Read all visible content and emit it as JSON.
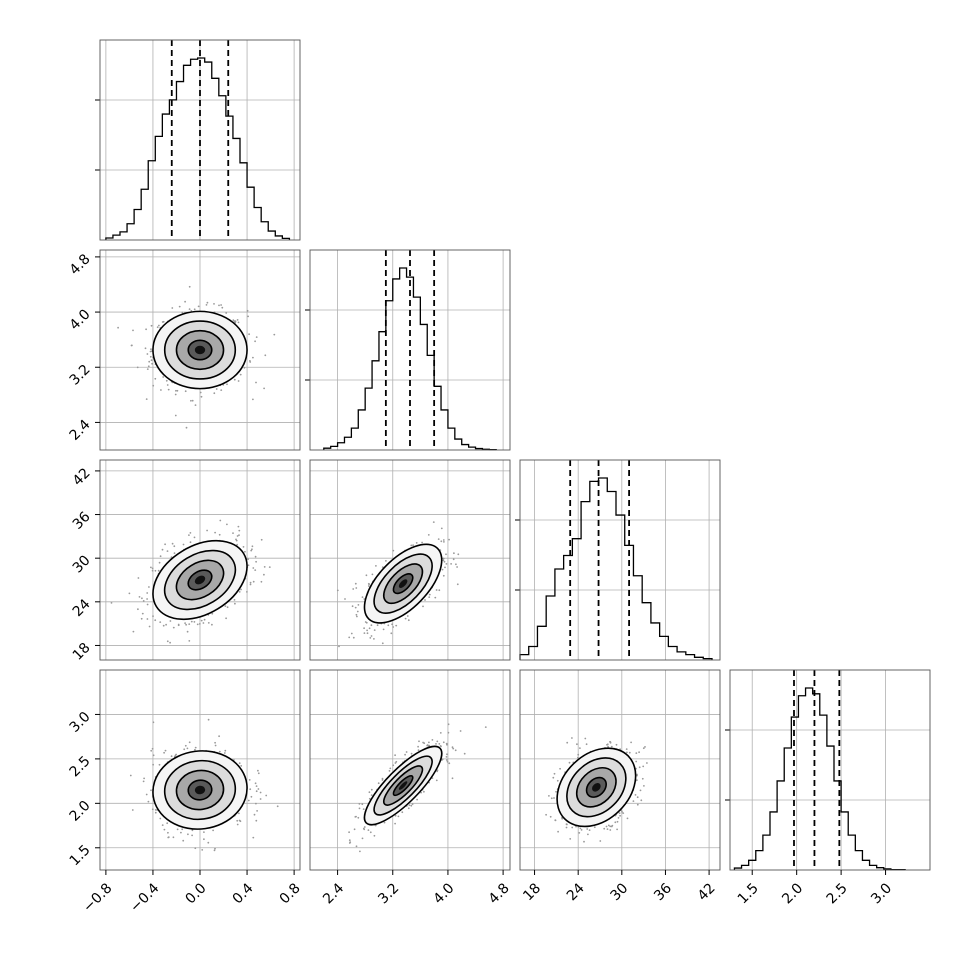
{
  "chart_data": {
    "type": "corner",
    "title": "",
    "parameters": [
      {
        "range": [
          -0.85,
          0.85
        ],
        "ticks": [
          -0.8,
          -0.4,
          0.0,
          0.4,
          0.8
        ],
        "tick_labels": [
          "−0.8",
          "−0.4",
          "0.0",
          "0.4",
          "0.8"
        ],
        "mean": 0.0,
        "sd": 0.2,
        "quantiles": [
          -0.24,
          0.0,
          0.24
        ],
        "hist_bins": [
          -0.8,
          -0.74,
          -0.68,
          -0.62,
          -0.56,
          -0.5,
          -0.44,
          -0.38,
          -0.32,
          -0.26,
          -0.2,
          -0.14,
          -0.08,
          -0.02,
          0.04,
          0.1,
          0.16,
          0.22,
          0.28,
          0.34,
          0.4,
          0.46,
          0.52,
          0.58,
          0.64,
          0.7,
          0.76
        ],
        "hist_counts": [
          5,
          12,
          20,
          40,
          75,
          125,
          195,
          255,
          310,
          345,
          390,
          430,
          445,
          448,
          438,
          398,
          355,
          305,
          250,
          190,
          130,
          80,
          45,
          22,
          10,
          4
        ]
      },
      {
        "range": [
          2.0,
          4.9
        ],
        "ticks": [
          2.4,
          3.2,
          4.0,
          4.8
        ],
        "tick_labels": [
          "2.4",
          "3.2",
          "4.0",
          "4.8"
        ],
        "mean": 3.45,
        "sd": 0.28,
        "quantiles": [
          3.1,
          3.45,
          3.8
        ],
        "hist_bins": [
          2.2,
          2.3,
          2.4,
          2.5,
          2.6,
          2.7,
          2.8,
          2.9,
          3.0,
          3.1,
          3.2,
          3.3,
          3.4,
          3.5,
          3.6,
          3.7,
          3.8,
          3.9,
          4.0,
          4.1,
          4.2,
          4.3,
          4.4,
          4.5,
          4.6,
          4.7
        ],
        "hist_counts": [
          5,
          10,
          20,
          35,
          60,
          110,
          170,
          245,
          325,
          410,
          470,
          500,
          475,
          420,
          345,
          260,
          175,
          110,
          60,
          30,
          15,
          8,
          4,
          2,
          1
        ]
      },
      {
        "range": [
          16.0,
          43.5
        ],
        "ticks": [
          18,
          24,
          30,
          36,
          42
        ],
        "tick_labels": [
          "18",
          "24",
          "30",
          "36",
          "42"
        ],
        "mean": 27.0,
        "sd": 2.7,
        "quantiles": [
          22.9,
          26.8,
          31.0
        ],
        "hist_bins": [
          16.0,
          17.2,
          18.4,
          19.6,
          20.8,
          22.0,
          23.2,
          24.4,
          25.6,
          26.8,
          28.0,
          29.2,
          30.4,
          31.6,
          32.8,
          34.0,
          35.2,
          36.4,
          37.6,
          38.8,
          40.0,
          41.2,
          42.4
        ],
        "hist_counts": [
          8,
          20,
          50,
          95,
          135,
          155,
          180,
          235,
          265,
          270,
          250,
          215,
          170,
          125,
          85,
          55,
          35,
          20,
          12,
          8,
          4,
          2
        ]
      },
      {
        "range": [
          1.25,
          3.5
        ],
        "ticks": [
          1.5,
          2.0,
          2.5,
          3.0
        ],
        "tick_labels": [
          "1.5",
          "2.0",
          "2.5",
          "3.0"
        ],
        "mean": 2.2,
        "sd": 0.22,
        "quantiles": [
          1.97,
          2.2,
          2.48
        ],
        "hist_bins": [
          1.3,
          1.38,
          1.46,
          1.54,
          1.62,
          1.7,
          1.78,
          1.86,
          1.94,
          2.02,
          2.1,
          2.18,
          2.26,
          2.34,
          2.42,
          2.5,
          2.58,
          2.66,
          2.74,
          2.82,
          2.9,
          2.98,
          3.06,
          3.14,
          3.22
        ],
        "hist_counts": [
          5,
          12,
          25,
          50,
          90,
          150,
          230,
          315,
          395,
          450,
          470,
          455,
          400,
          320,
          230,
          150,
          90,
          50,
          25,
          12,
          6,
          3,
          1,
          1
        ]
      }
    ],
    "pairs": [
      {
        "x": 0,
        "y": 1,
        "corr": 0.0,
        "peak": [
          0.0,
          3.45
        ]
      },
      {
        "x": 0,
        "y": 2,
        "corr": 0.35,
        "peak": [
          0.0,
          27.0
        ]
      },
      {
        "x": 1,
        "y": 2,
        "corr": 0.6,
        "peak": [
          3.35,
          26.5
        ]
      },
      {
        "x": 0,
        "y": 3,
        "corr": 0.05,
        "peak": [
          0.0,
          2.15
        ]
      },
      {
        "x": 1,
        "y": 3,
        "corr": 0.82,
        "peak": [
          3.35,
          2.2
        ]
      },
      {
        "x": 2,
        "y": 3,
        "corr": 0.3,
        "peak": [
          26.5,
          2.18
        ]
      }
    ],
    "contour_levels_sigma": [
      0.5,
      1.0,
      1.5,
      2.0
    ],
    "grid": true,
    "legend": "none",
    "colors": {
      "line": "#000000",
      "points": "#9a9a9a",
      "density": "#000000"
    }
  }
}
